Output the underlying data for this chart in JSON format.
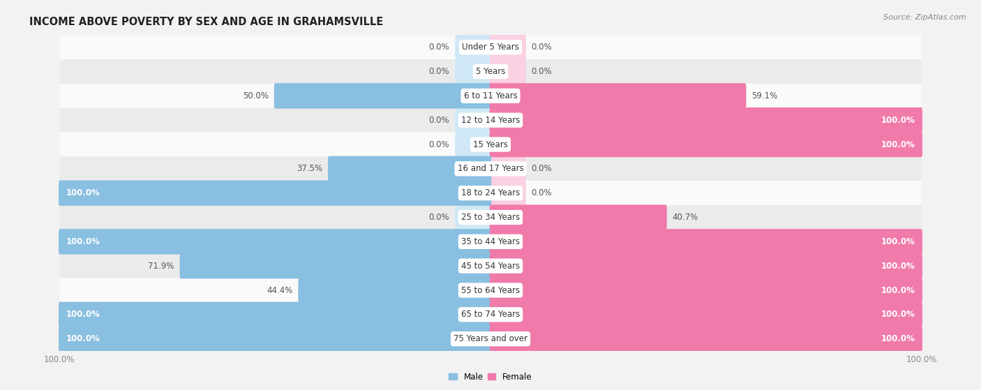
{
  "title": "INCOME ABOVE POVERTY BY SEX AND AGE IN GRAHAMSVILLE",
  "source": "Source: ZipAtlas.com",
  "categories": [
    "Under 5 Years",
    "5 Years",
    "6 to 11 Years",
    "12 to 14 Years",
    "15 Years",
    "16 and 17 Years",
    "18 to 24 Years",
    "25 to 34 Years",
    "35 to 44 Years",
    "45 to 54 Years",
    "55 to 64 Years",
    "65 to 74 Years",
    "75 Years and over"
  ],
  "male_values": [
    0.0,
    0.0,
    50.0,
    0.0,
    0.0,
    37.5,
    100.0,
    0.0,
    100.0,
    71.9,
    44.4,
    100.0,
    100.0
  ],
  "female_values": [
    0.0,
    0.0,
    59.1,
    100.0,
    100.0,
    0.0,
    0.0,
    40.7,
    100.0,
    100.0,
    100.0,
    100.0,
    100.0
  ],
  "male_color": "#89bfe0",
  "female_color": "#f07aaa",
  "male_ghost_color": "#d0e8f5",
  "female_ghost_color": "#fad0e2",
  "bar_height": 0.58,
  "bg_color": "#f2f2f2",
  "row_colors": [
    "#fafafa",
    "#ebebeb"
  ],
  "title_fontsize": 10.5,
  "label_fontsize": 8.5,
  "value_fontsize": 8.5,
  "tick_fontsize": 8.5,
  "axis_label_color": "#888888",
  "max_val": 100.0,
  "ghost_alpha": 1.0
}
